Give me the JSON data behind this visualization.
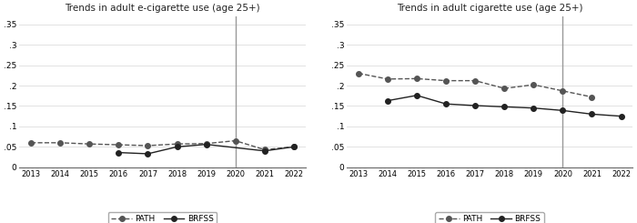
{
  "title_left": "Trends in adult e-cigarette use (age 25+)",
  "title_right": "Trends in adult cigarette use (age 25+)",
  "years": [
    2013,
    2014,
    2015,
    2016,
    2017,
    2018,
    2019,
    2020,
    2021,
    2022
  ],
  "ecig_path": [
    0.06,
    0.06,
    0.057,
    0.055,
    0.053,
    0.057,
    0.058,
    0.065,
    0.043,
    0.05
  ],
  "ecig_brfss": [
    null,
    null,
    null,
    0.036,
    0.033,
    0.05,
    0.056,
    null,
    0.04,
    0.05
  ],
  "cig_path": [
    0.23,
    0.216,
    0.217,
    0.212,
    0.212,
    0.193,
    0.202,
    0.187,
    0.172,
    null
  ],
  "cig_brfss": [
    null,
    0.163,
    0.176,
    0.155,
    0.151,
    0.148,
    0.145,
    0.139,
    0.13,
    0.125
  ],
  "vline_x": 2020,
  "ylim": [
    0,
    0.37
  ],
  "yticks": [
    0,
    0.05,
    0.1,
    0.15,
    0.2,
    0.25,
    0.3,
    0.35
  ],
  "ytick_labels": [
    "0",
    ".05",
    ".1",
    ".15",
    ".2",
    ".25",
    ".3",
    ".35"
  ],
  "path_color": "#555555",
  "brfss_color": "#222222",
  "vline_color": "#999999",
  "bg_color": "#ffffff",
  "legend_path_label": "PATH",
  "legend_brfss_label": "BRFSS"
}
